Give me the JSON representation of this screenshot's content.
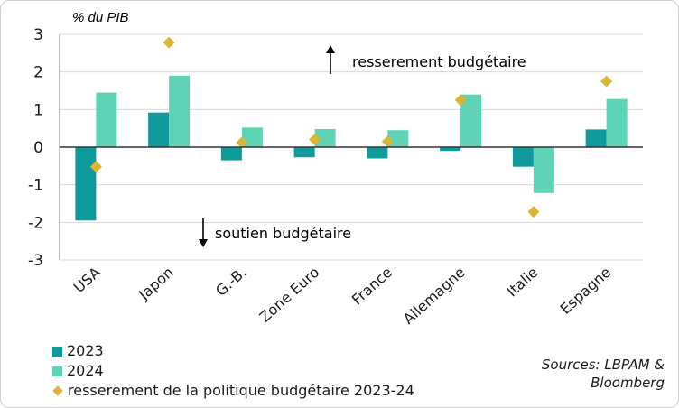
{
  "chart_data": {
    "type": "bar",
    "ylabel": "% du PIB",
    "ylim": [
      -3,
      3
    ],
    "yticks": [
      3,
      2,
      1,
      0,
      -1,
      -2,
      -3
    ],
    "categories": [
      "USA",
      "Japon",
      "G.-B.",
      "Zone Euro",
      "France",
      "Allemagne",
      "Italie",
      "Espagne"
    ],
    "series": [
      {
        "name": "2023",
        "values": [
          -1.95,
          0.92,
          -0.35,
          -0.27,
          -0.3,
          -0.1,
          -0.52,
          0.47
        ]
      },
      {
        "name": "2024",
        "values": [
          1.45,
          1.9,
          0.52,
          0.48,
          0.45,
          1.4,
          -1.22,
          1.28
        ]
      }
    ],
    "markers": {
      "name": "resserement de la politique budgétaire 2023-24",
      "values": [
        -0.52,
        2.78,
        0.12,
        0.2,
        0.15,
        1.25,
        -1.72,
        1.75
      ]
    },
    "annotations": {
      "up": "resserement budgétaire",
      "down": "soutien budgétaire"
    },
    "legend": [
      "2023",
      "2024",
      "resserement de la politique budgétaire 2023-24"
    ],
    "colors": {
      "2023": "#0f9a9c",
      "2024": "#5fd3b5",
      "marker": "#dcb437"
    }
  },
  "sources": {
    "line1": "Sources: LBPAM &",
    "line2": "Bloomberg"
  }
}
